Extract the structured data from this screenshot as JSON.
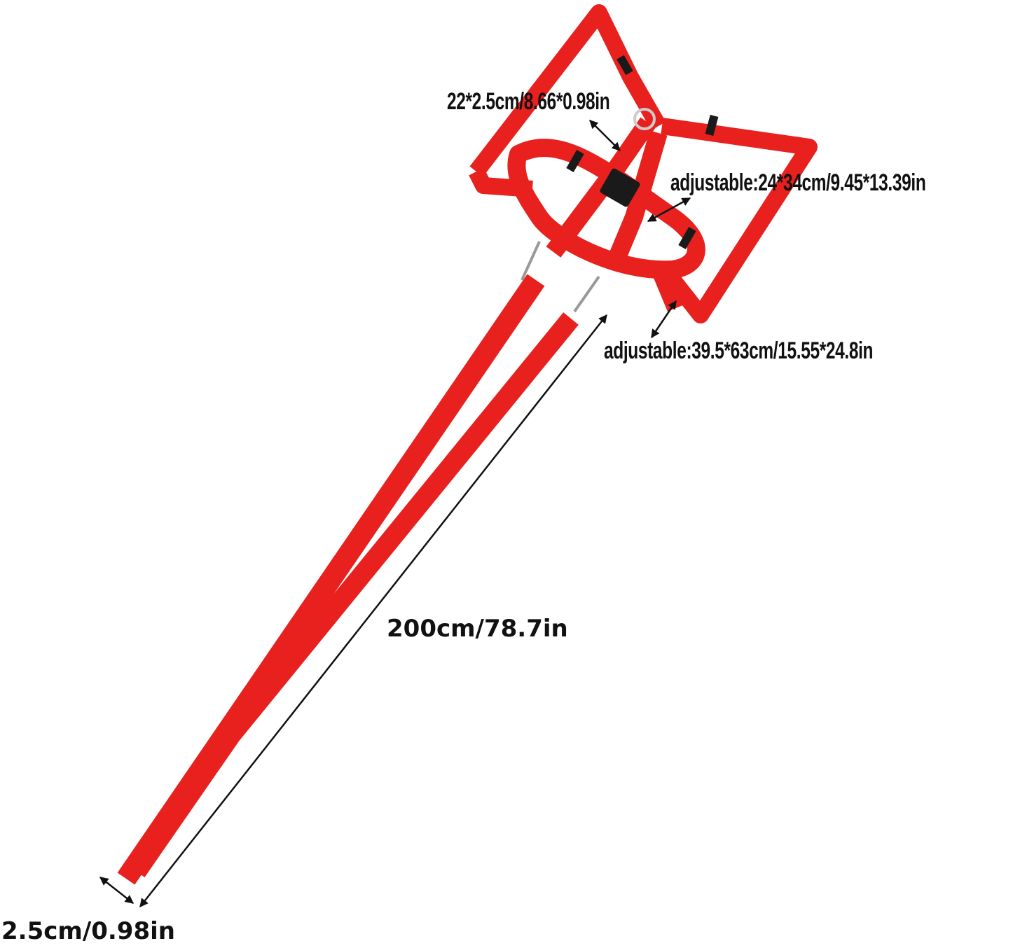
{
  "product": {
    "strap_color": "#e8211e",
    "buckle_color": "#1a1a1a",
    "labels": {
      "chest_strap": "22*2.5cm/8.66*0.98in",
      "chest_adjust": "adjustable:24*34cm/9.45*13.39in",
      "waist_adjust": "adjustable:39.5*63cm/15.55*24.8in",
      "leash_length": "200cm/78.7in",
      "strap_width": "2.5cm/0.98in"
    }
  }
}
